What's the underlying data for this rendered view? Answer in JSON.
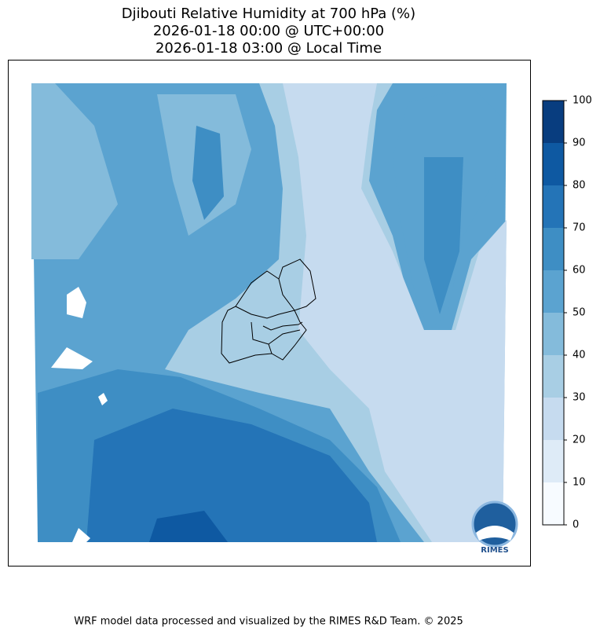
{
  "title": [
    "Djibouti Relative Humidity at 700 hPa (%)",
    "2026-01-18 00:00 @ UTC+00:00",
    "2026-01-18 03:00 @ Local Time"
  ],
  "colorbar": {
    "ticks": [
      0,
      10,
      20,
      30,
      40,
      50,
      60,
      70,
      80,
      90,
      100
    ],
    "colors": [
      "#f7fbff",
      "#deebf7",
      "#c6dbef",
      "#a8cee4",
      "#84bbdb",
      "#5ba3d0",
      "#3e8ec4",
      "#2474b7",
      "#0e59a2",
      "#083d7f"
    ]
  },
  "logo": "RIMES",
  "footer": "WRF model data processed and visualized by the RIMES R&D Team. © 2025"
}
